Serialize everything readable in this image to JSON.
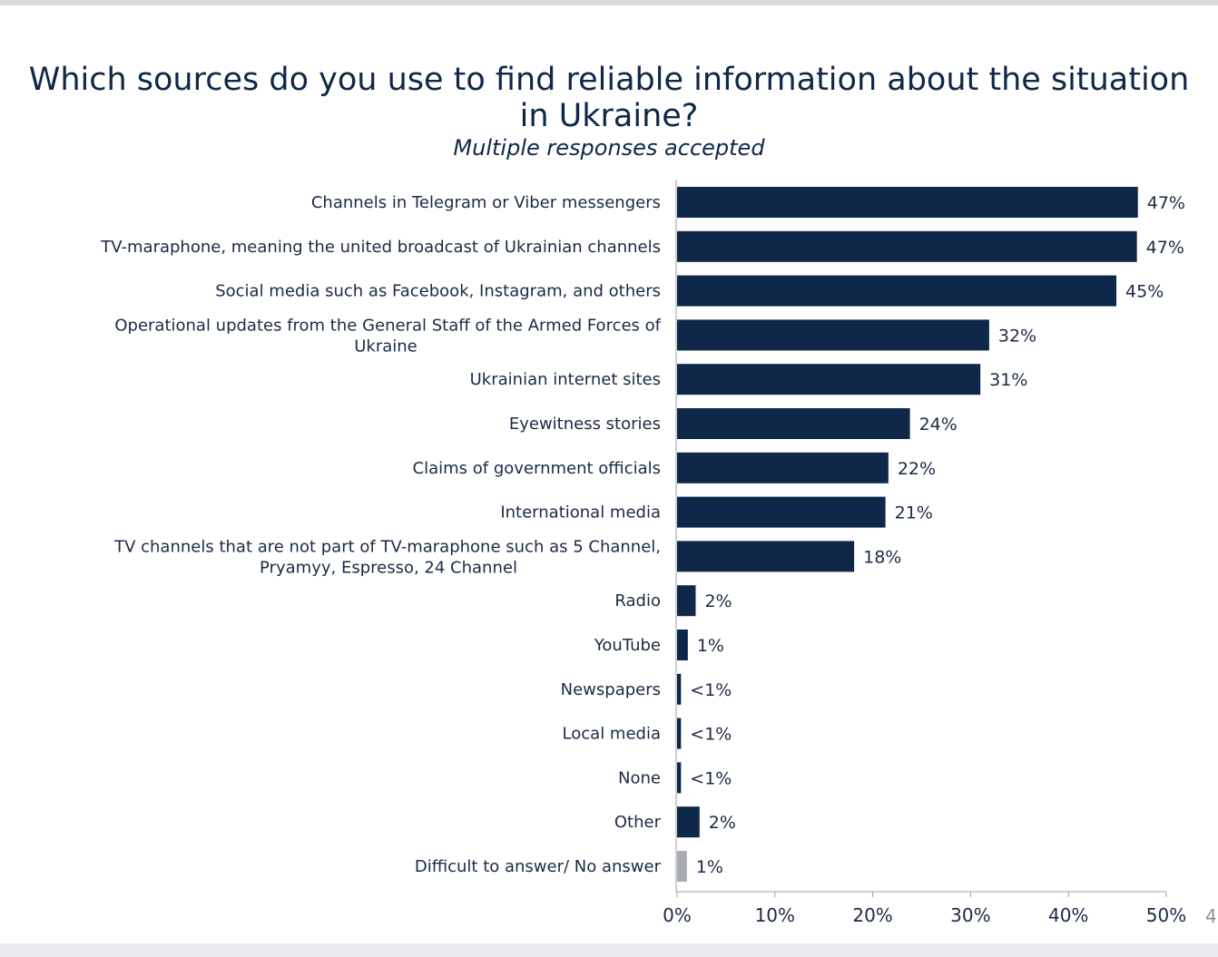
{
  "title": "Which sources do you use to find reliable information about the situation in Ukraine?",
  "subtitle": "Multiple responses accepted",
  "page_number": "4",
  "colors": {
    "bar": "#0f2748",
    "bar_muted": "#a9acb1",
    "text": "#1b2a44",
    "axis": "#9aa0a8"
  },
  "chart_data": {
    "type": "bar",
    "orientation": "horizontal",
    "categories": [
      [
        "Channels in Telegram or Viber messengers"
      ],
      [
        "TV-maraphone, meaning the united broadcast of Ukrainian channels"
      ],
      [
        "Social media such as Facebook, Instagram, and others"
      ],
      [
        "Operational updates from the General Staff of the Armed Forces of",
        "Ukraine"
      ],
      [
        "Ukrainian internet sites"
      ],
      [
        "Eyewitness stories"
      ],
      [
        "Claims of government officials"
      ],
      [
        "International media"
      ],
      [
        "TV channels that are not part of TV-maraphone such as 5 Channel,",
        "Pryamyy, Espresso, 24 Channel"
      ],
      [
        "Radio"
      ],
      [
        "YouTube"
      ],
      [
        "Newspapers"
      ],
      [
        "Local media"
      ],
      [
        "None"
      ],
      [
        "Other"
      ],
      [
        "Difficult to answer/ No answer"
      ]
    ],
    "values": [
      47.1,
      47.0,
      44.9,
      31.9,
      31.0,
      23.8,
      21.6,
      21.3,
      18.1,
      1.9,
      1.1,
      0.4,
      0.4,
      0.4,
      2.3,
      1.0
    ],
    "value_labels": [
      "47%",
      "47%",
      "45%",
      "32%",
      "31%",
      "24%",
      "22%",
      "21%",
      "18%",
      "2%",
      "1%",
      "<1%",
      "<1%",
      "<1%",
      "2%",
      "1%"
    ],
    "muted": [
      false,
      false,
      false,
      false,
      false,
      false,
      false,
      false,
      false,
      false,
      false,
      false,
      false,
      false,
      false,
      true
    ],
    "xlim": [
      0,
      50
    ],
    "xticks": [
      0,
      10,
      20,
      30,
      40,
      50
    ],
    "xtick_labels": [
      "0%",
      "10%",
      "20%",
      "30%",
      "40%",
      "50%"
    ],
    "grid": false,
    "legend": "none"
  }
}
